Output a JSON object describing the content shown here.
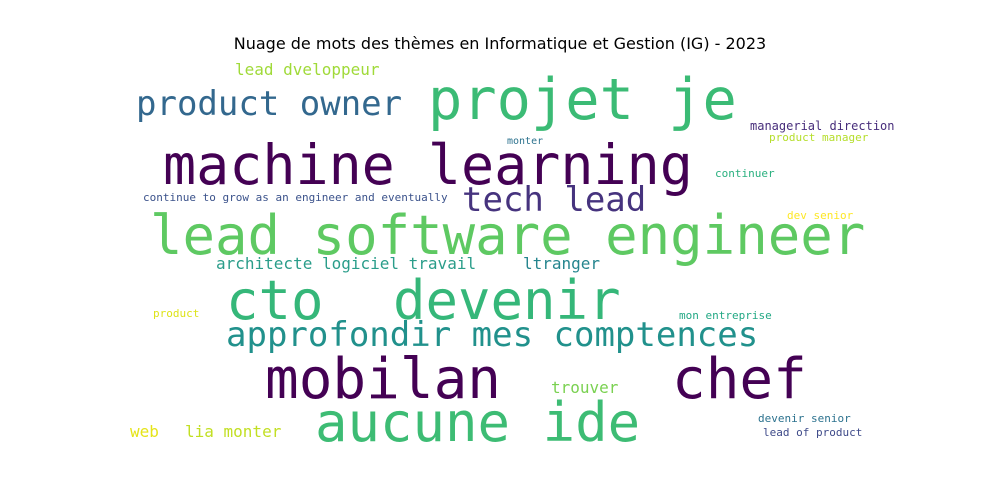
{
  "title": "Nuage de mots des thèmes en Informatique et Gestion (IG) - 2023",
  "words": [
    {
      "text": "lead dveloppeur",
      "color": "#a0da39"
    },
    {
      "text": "product owner",
      "color": "#33688e"
    },
    {
      "text": "projet je",
      "color": "#3bbb75"
    },
    {
      "text": "managerial direction",
      "color": "#472d7b"
    },
    {
      "text": "product manager",
      "color": "#b5de2b"
    },
    {
      "text": "monter",
      "color": "#2c728e"
    },
    {
      "text": "machine learning",
      "color": "#440154"
    },
    {
      "text": "continuer",
      "color": "#2ab07f"
    },
    {
      "text": "continue to grow as an engineer and eventually",
      "color": "#3b528b"
    },
    {
      "text": "tech lead",
      "color": "#46337e"
    },
    {
      "text": "dev senior",
      "color": "#fde725"
    },
    {
      "text": "lead software engineer",
      "color": "#5ec962"
    },
    {
      "text": "architecte logiciel travail",
      "color": "#2a9d8a"
    },
    {
      "text": "ltranger",
      "color": "#25858e"
    },
    {
      "text": "cto",
      "color": "#35b779"
    },
    {
      "text": "devenir",
      "color": "#35b779"
    },
    {
      "text": "product",
      "color": "#dde318"
    },
    {
      "text": "mon entreprise",
      "color": "#22a884"
    },
    {
      "text": "approfondir mes comptences",
      "color": "#21918c"
    },
    {
      "text": "mobilan",
      "color": "#440154"
    },
    {
      "text": "chef",
      "color": "#440154"
    },
    {
      "text": "trouver",
      "color": "#7ad151"
    },
    {
      "text": "web",
      "color": "#e5e419"
    },
    {
      "text": "lia monter",
      "color": "#c2df23"
    },
    {
      "text": "aucune ide",
      "color": "#3dbc74"
    },
    {
      "text": "devenir senior",
      "color": "#2c728e"
    },
    {
      "text": "lead of product",
      "color": "#3e4a89"
    }
  ]
}
